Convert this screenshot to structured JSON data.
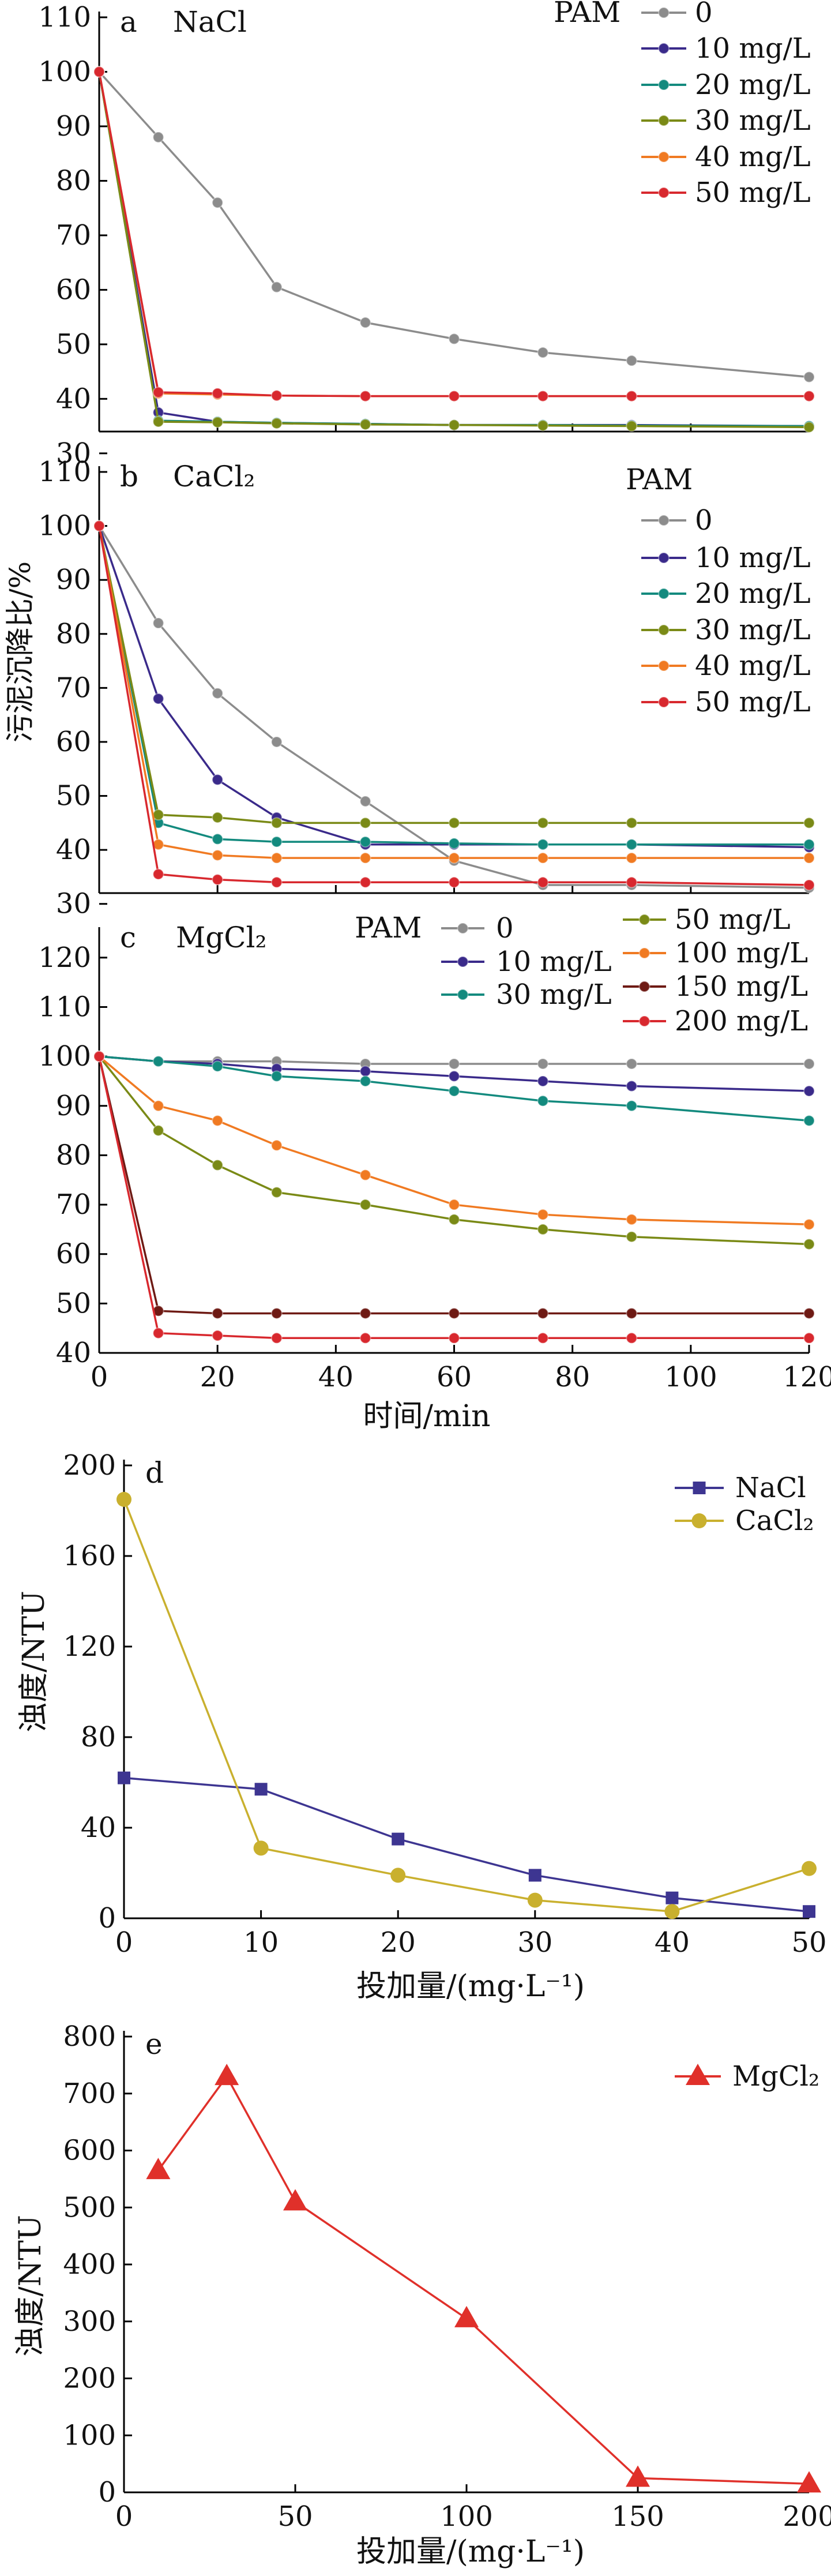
{
  "colors": {
    "pam_0": "#8c8c8c",
    "pam_10": "#3a2a8a",
    "pam_20": "#138a7e",
    "pam_30": "#7a8a16",
    "pam_40": "#f07a22",
    "pam_50": "#d8282e",
    "pam_100": "#f07a22",
    "pam_150": "#6e1a14",
    "pam_200": "#d8282e",
    "nacl": "#3d3591",
    "cacl2": "#c9b02e",
    "mgcl2": "#e0302a"
  },
  "shared": {
    "y_axis_label": "污泥沉降比/%",
    "time_axis_label": "时间/min",
    "dose_axis_label": "投加量/(mg·L⁻¹)",
    "turbidity_axis_label": "浊度/NTU",
    "legend_title": "PAM"
  },
  "chart_data": [
    {
      "id": "a",
      "panel_label": "a",
      "salt_label": "NaCl",
      "type": "line",
      "xlim": [
        0,
        120
      ],
      "ylim": [
        34,
        110
      ],
      "y_ticks": [
        30,
        40,
        50,
        60,
        70,
        80,
        90,
        100,
        110
      ],
      "x": [
        0,
        10,
        20,
        30,
        45,
        60,
        75,
        90,
        120
      ],
      "series": [
        {
          "name": "0",
          "color_key": "pam_0",
          "values": [
            100,
            88,
            76,
            60.5,
            54,
            51,
            48.5,
            47,
            44
          ]
        },
        {
          "name": "10 mg/L",
          "color_key": "pam_10",
          "values": [
            100,
            37.5,
            35.8,
            35.6,
            35.4,
            35.2,
            35.2,
            35.2,
            35
          ]
        },
        {
          "name": "20 mg/L",
          "color_key": "pam_20",
          "values": [
            100,
            36,
            35.8,
            35.6,
            35.4,
            35.2,
            35.2,
            35.1,
            35
          ]
        },
        {
          "name": "30 mg/L",
          "color_key": "pam_30",
          "values": [
            100,
            35.8,
            35.7,
            35.5,
            35.3,
            35.2,
            35.1,
            35,
            34.8
          ]
        },
        {
          "name": "40 mg/L",
          "color_key": "pam_40",
          "values": [
            100,
            41,
            40.8,
            40.6,
            40.5,
            40.5,
            40.5,
            40.5,
            40.5
          ]
        },
        {
          "name": "50 mg/L",
          "color_key": "pam_50",
          "values": [
            100,
            41.2,
            41,
            40.6,
            40.5,
            40.5,
            40.5,
            40.5,
            40.5
          ]
        }
      ]
    },
    {
      "id": "b",
      "panel_label": "b",
      "salt_label": "CaCl₂",
      "type": "line",
      "xlim": [
        0,
        120
      ],
      "ylim": [
        32,
        110
      ],
      "y_ticks": [
        30,
        40,
        50,
        60,
        70,
        80,
        90,
        100,
        110
      ],
      "x": [
        0,
        10,
        20,
        30,
        45,
        60,
        75,
        90,
        120
      ],
      "series": [
        {
          "name": "0",
          "color_key": "pam_0",
          "values": [
            100,
            82,
            69,
            60,
            49,
            38,
            33.5,
            33.5,
            33
          ]
        },
        {
          "name": "10 mg/L",
          "color_key": "pam_10",
          "values": [
            100,
            68,
            53,
            46,
            41,
            41,
            41,
            41,
            40.5
          ]
        },
        {
          "name": "20 mg/L",
          "color_key": "pam_20",
          "values": [
            100,
            45,
            42,
            41.5,
            41.5,
            41.2,
            41,
            41,
            41
          ]
        },
        {
          "name": "30 mg/L",
          "color_key": "pam_30",
          "values": [
            100,
            46.5,
            46,
            45,
            45,
            45,
            45,
            45,
            45
          ]
        },
        {
          "name": "40 mg/L",
          "color_key": "pam_40",
          "values": [
            100,
            41,
            39,
            38.5,
            38.5,
            38.5,
            38.5,
            38.5,
            38.5
          ]
        },
        {
          "name": "50 mg/L",
          "color_key": "pam_50",
          "values": [
            100,
            35.5,
            34.5,
            34,
            34,
            34,
            34,
            34,
            33.5
          ]
        }
      ]
    },
    {
      "id": "c",
      "panel_label": "c",
      "salt_label": "MgCl₂",
      "type": "line",
      "xlim": [
        0,
        120
      ],
      "ylim": [
        40,
        125
      ],
      "y_ticks": [
        40,
        50,
        60,
        70,
        80,
        90,
        100,
        110,
        120
      ],
      "x_ticks": [
        0,
        20,
        40,
        60,
        80,
        100,
        120
      ],
      "x": [
        0,
        10,
        20,
        30,
        45,
        60,
        75,
        90,
        120
      ],
      "series": [
        {
          "name": "0",
          "color_key": "pam_0",
          "values": [
            100,
            99,
            99,
            99,
            98.5,
            98.5,
            98.5,
            98.5,
            98.5
          ]
        },
        {
          "name": "10 mg/L",
          "color_key": "pam_10",
          "values": [
            100,
            99,
            98.5,
            97.5,
            97,
            96,
            95,
            94,
            93
          ]
        },
        {
          "name": "30 mg/L",
          "color_key": "pam_20",
          "values": [
            100,
            99,
            98,
            96,
            95,
            93,
            91,
            90,
            87
          ]
        },
        {
          "name": "50 mg/L",
          "color_key": "pam_30",
          "values": [
            100,
            85,
            78,
            72.5,
            70,
            67,
            65,
            63.5,
            62
          ]
        },
        {
          "name": "100 mg/L",
          "color_key": "pam_100",
          "values": [
            100,
            90,
            87,
            82,
            76,
            70,
            68,
            67,
            66
          ]
        },
        {
          "name": "150 mg/L",
          "color_key": "pam_150",
          "values": [
            100,
            48.5,
            48,
            48,
            48,
            48,
            48,
            48,
            48
          ]
        },
        {
          "name": "200 mg/L",
          "color_key": "pam_200",
          "values": [
            100,
            44,
            43.5,
            43,
            43,
            43,
            43,
            43,
            43
          ]
        }
      ]
    },
    {
      "id": "d",
      "panel_label": "d",
      "type": "line",
      "xlim": [
        0,
        50
      ],
      "ylim": [
        0,
        200
      ],
      "x_ticks": [
        0,
        10,
        20,
        30,
        40,
        50
      ],
      "y_ticks": [
        0,
        40,
        80,
        120,
        160,
        200
      ],
      "series": [
        {
          "name": "NaCl",
          "color_key": "nacl",
          "marker": "square",
          "x": [
            0,
            10,
            20,
            30,
            40,
            50
          ],
          "values": [
            62,
            57,
            35,
            19,
            9,
            3
          ]
        },
        {
          "name": "CaCl₂",
          "color_key": "cacl2",
          "marker": "circle",
          "x": [
            0,
            10,
            20,
            30,
            40,
            50
          ],
          "values": [
            185,
            31,
            19,
            8,
            3,
            22
          ]
        }
      ]
    },
    {
      "id": "e",
      "panel_label": "e",
      "type": "line",
      "xlim": [
        0,
        200
      ],
      "ylim": [
        0,
        800
      ],
      "x_ticks": [
        0,
        50,
        100,
        150,
        200
      ],
      "y_ticks": [
        0,
        100,
        200,
        300,
        400,
        500,
        600,
        700,
        800
      ],
      "series": [
        {
          "name": "MgCl₂",
          "color_key": "mgcl2",
          "marker": "triangle",
          "x": [
            10,
            30,
            50,
            100,
            150,
            200
          ],
          "values": [
            565,
            730,
            510,
            305,
            25,
            15
          ]
        }
      ]
    }
  ]
}
